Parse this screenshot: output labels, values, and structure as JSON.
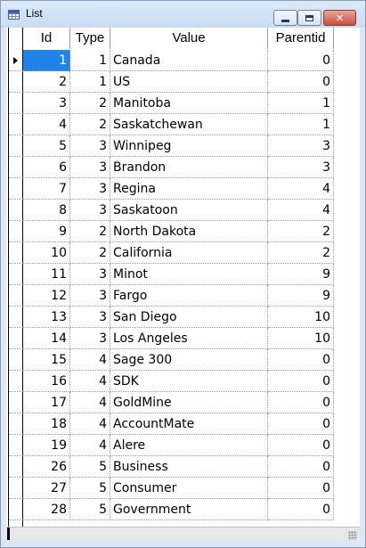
{
  "window": {
    "title": "List"
  },
  "columns": [
    "Id",
    "Type",
    "Value",
    "Parentid"
  ],
  "selected_row": 0,
  "rows": [
    {
      "id": "1",
      "type": "1",
      "value": "Canada",
      "parentid": "0"
    },
    {
      "id": "2",
      "type": "1",
      "value": "US",
      "parentid": "0"
    },
    {
      "id": "3",
      "type": "2",
      "value": "Manitoba",
      "parentid": "1"
    },
    {
      "id": "4",
      "type": "2",
      "value": "Saskatchewan",
      "parentid": "1"
    },
    {
      "id": "5",
      "type": "3",
      "value": "Winnipeg",
      "parentid": "3"
    },
    {
      "id": "6",
      "type": "3",
      "value": "Brandon",
      "parentid": "3"
    },
    {
      "id": "7",
      "type": "3",
      "value": "Regina",
      "parentid": "4"
    },
    {
      "id": "8",
      "type": "3",
      "value": "Saskatoon",
      "parentid": "4"
    },
    {
      "id": "9",
      "type": "2",
      "value": "North Dakota",
      "parentid": "2"
    },
    {
      "id": "10",
      "type": "2",
      "value": "California",
      "parentid": "2"
    },
    {
      "id": "11",
      "type": "3",
      "value": "Minot",
      "parentid": "9"
    },
    {
      "id": "12",
      "type": "3",
      "value": "Fargo",
      "parentid": "9"
    },
    {
      "id": "13",
      "type": "3",
      "value": "San Diego",
      "parentid": "10"
    },
    {
      "id": "14",
      "type": "3",
      "value": "Los Angeles",
      "parentid": "10"
    },
    {
      "id": "15",
      "type": "4",
      "value": "Sage 300",
      "parentid": "0"
    },
    {
      "id": "16",
      "type": "4",
      "value": "SDK",
      "parentid": "0"
    },
    {
      "id": "17",
      "type": "4",
      "value": "GoldMine",
      "parentid": "0"
    },
    {
      "id": "18",
      "type": "4",
      "value": "AccountMate",
      "parentid": "0"
    },
    {
      "id": "19",
      "type": "4",
      "value": "Alere",
      "parentid": "0"
    },
    {
      "id": "26",
      "type": "5",
      "value": "Business",
      "parentid": "0"
    },
    {
      "id": "27",
      "type": "5",
      "value": "Consumer",
      "parentid": "0"
    },
    {
      "id": "28",
      "type": "5",
      "value": "Government",
      "parentid": "0"
    }
  ],
  "colors": {
    "selection": "#1e84e8",
    "title_bar": "#c9dcf3",
    "close_button": "#c9503b"
  }
}
